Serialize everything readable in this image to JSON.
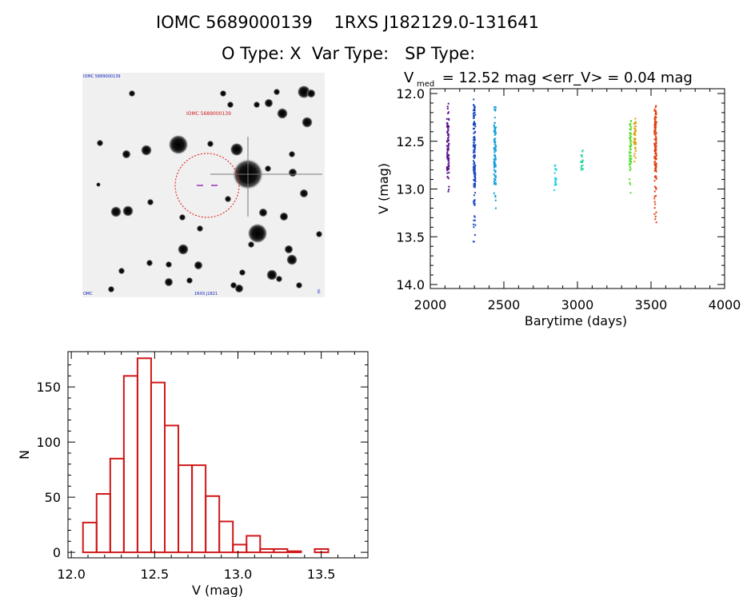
{
  "header": {
    "title_line1": "IOMC 5689000139    1RXS J182129.0-131641",
    "title_line2": "O Type: X  Var Type:   SP Type:"
  },
  "finder_chart": {
    "label_top_left": "IOMC 5689000139",
    "label_target": "IOMC 5689000139",
    "label_bottom": "1RXS J1821",
    "label_bottom_left": "OMC",
    "label_bottom_right": "E",
    "colors": {
      "circle": "#e01010",
      "marker": "#8800aa",
      "text": "#d02020"
    }
  },
  "lightcurve": {
    "stat_V": "V",
    "stat_sub": "med",
    "stat_rest": " = 12.52 mag <err_V> = 0.04 mag"
  },
  "chart_data": [
    {
      "type": "scatter",
      "title": "V_med = 12.52 mag <err_V> = 0.04 mag",
      "xlabel": "Barytime (days)",
      "ylabel": "V (mag)",
      "xlim": [
        2000,
        4000
      ],
      "ylim": [
        14.0,
        12.0
      ],
      "y_inverted": true,
      "x_ticks": [
        2000,
        2500,
        3000,
        3500,
        4000
      ],
      "y_ticks": [
        "12.0",
        "12.5",
        "13.0",
        "13.5",
        "14.0"
      ],
      "clusters": [
        {
          "x": 2120,
          "ymin": 12.08,
          "ymax": 13.12,
          "center": 12.55,
          "color": "#5a1090",
          "n": 90
        },
        {
          "x": 2300,
          "ymin": 12.06,
          "ymax": 13.62,
          "center": 12.55,
          "color": "#1848c0",
          "n": 140
        },
        {
          "x": 2440,
          "ymin": 12.1,
          "ymax": 13.25,
          "center": 12.65,
          "color": "#18a0d8",
          "n": 110
        },
        {
          "x": 2850,
          "ymin": 12.72,
          "ymax": 13.12,
          "center": 12.85,
          "color": "#18d0e0",
          "n": 18
        },
        {
          "x": 3030,
          "ymin": 12.55,
          "ymax": 12.85,
          "center": 12.72,
          "color": "#28d898",
          "n": 18
        },
        {
          "x": 3360,
          "ymin": 12.2,
          "ymax": 13.05,
          "center": 12.55,
          "color": "#50e030",
          "n": 55
        },
        {
          "x": 3390,
          "ymin": 12.25,
          "ymax": 12.75,
          "center": 12.45,
          "color": "#e0a010",
          "n": 40
        },
        {
          "x": 3530,
          "ymin": 12.1,
          "ymax": 13.4,
          "center": 12.55,
          "color": "#e04010",
          "n": 130
        }
      ]
    },
    {
      "type": "bar",
      "title": "",
      "xlabel": "V (mag)",
      "ylabel": "N",
      "xlim": [
        11.98,
        13.78
      ],
      "ylim": [
        -5,
        182
      ],
      "x_ticks": [
        "12.0",
        "12.5",
        "13.0",
        "13.5"
      ],
      "y_ticks": [
        0,
        50,
        100,
        150
      ],
      "bin_start": 12.07,
      "bin_width": 0.0818,
      "values": [
        27,
        53,
        85,
        160,
        176,
        154,
        115,
        79,
        79,
        51,
        28,
        7,
        15,
        3,
        3,
        1,
        0,
        3,
        0
      ],
      "bar_color": "#d01818"
    }
  ]
}
